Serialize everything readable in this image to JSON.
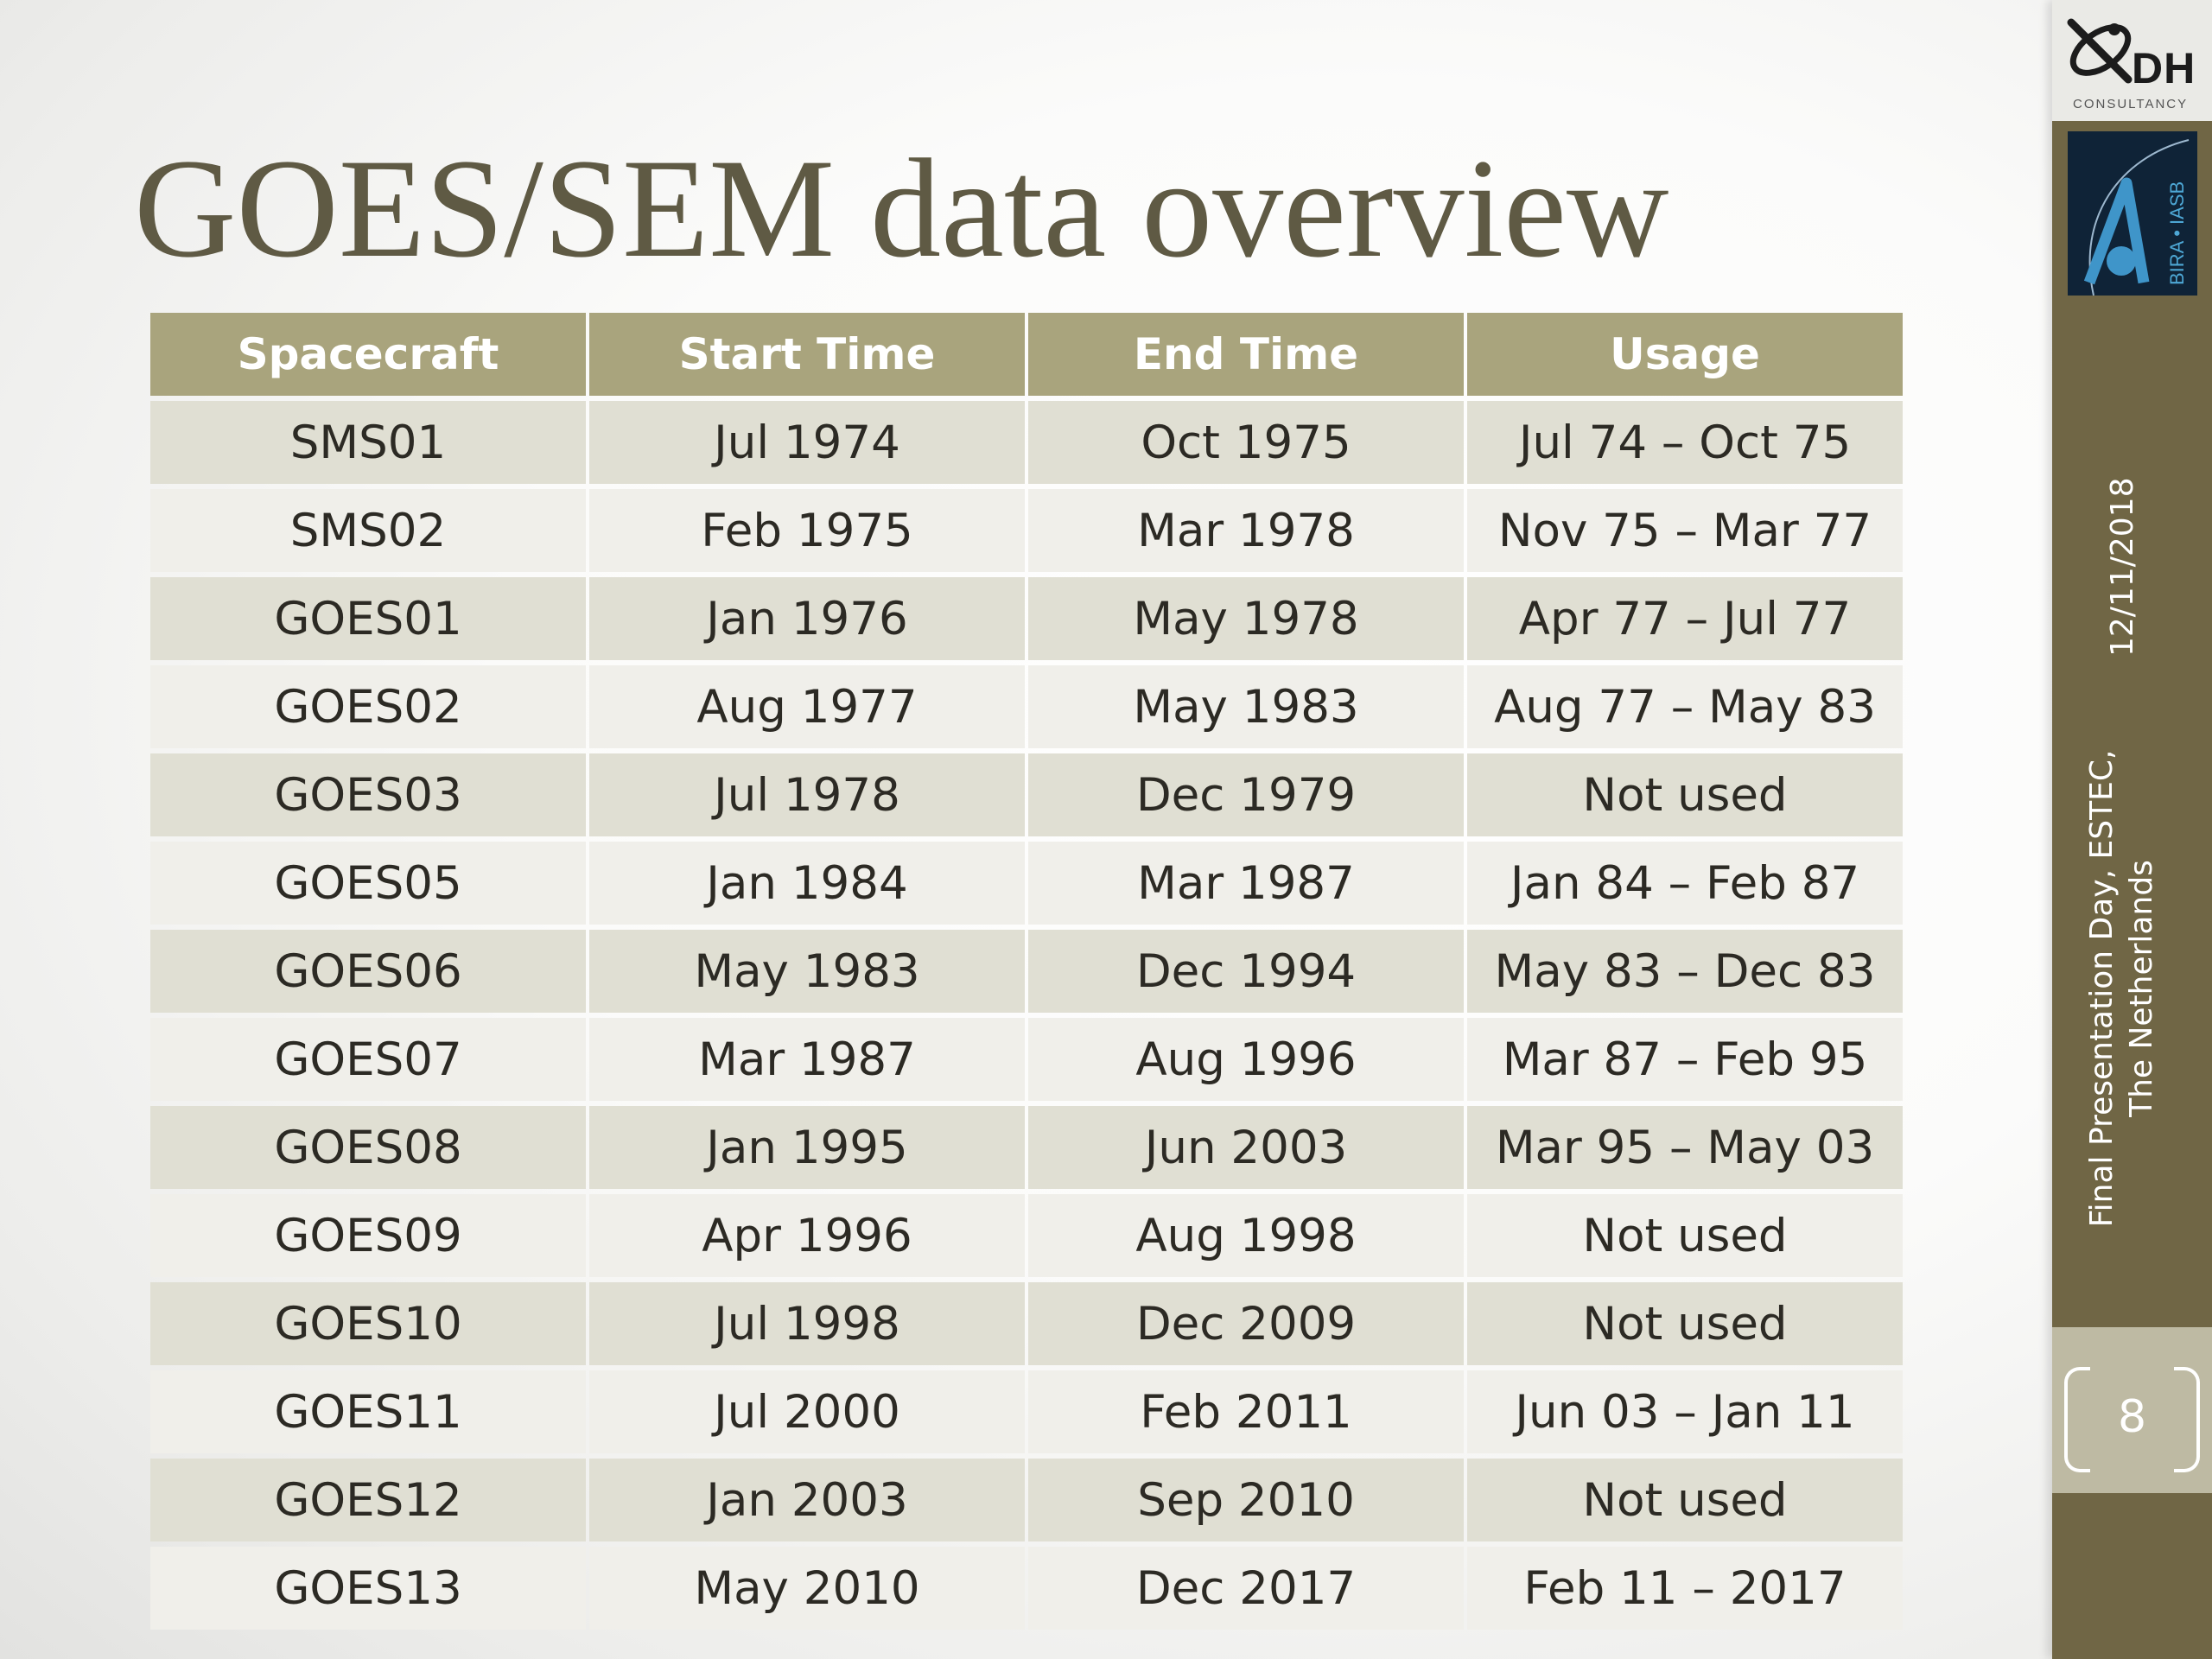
{
  "slide": {
    "title": "GOES/SEM data overview",
    "date": "12/11/2018",
    "event_line1": "Final Presentation Day, ESTEC,",
    "event_line2": "The Netherlands",
    "page_number": "8"
  },
  "logos": {
    "dh_text": "DH",
    "dh_subtext": "CONSULTANCY",
    "bira_text": "BIRA • IASB"
  },
  "table": {
    "headers": [
      "Spacecraft",
      "Start Time",
      "End Time",
      "Usage"
    ],
    "rows": [
      [
        "SMS01",
        "Jul 1974",
        "Oct 1975",
        "Jul 74 – Oct 75"
      ],
      [
        "SMS02",
        "Feb 1975",
        "Mar 1978",
        "Nov 75 – Mar 77"
      ],
      [
        "GOES01",
        "Jan 1976",
        "May 1978",
        "Apr 77 – Jul 77"
      ],
      [
        "GOES02",
        "Aug 1977",
        "May 1983",
        "Aug 77 – May 83"
      ],
      [
        "GOES03",
        "Jul 1978",
        "Dec 1979",
        "Not used"
      ],
      [
        "GOES05",
        "Jan 1984",
        "Mar 1987",
        "Jan 84 – Feb 87"
      ],
      [
        "GOES06",
        "May 1983",
        "Dec 1994",
        "May 83 – Dec 83"
      ],
      [
        "GOES07",
        "Mar 1987",
        "Aug 1996",
        "Mar 87 – Feb 95"
      ],
      [
        "GOES08",
        "Jan 1995",
        "Jun 2003",
        "Mar 95 – May 03"
      ],
      [
        "GOES09",
        "Apr 1996",
        "Aug 1998",
        "Not used"
      ],
      [
        "GOES10",
        "Jul 1998",
        "Dec 2009",
        "Not used"
      ],
      [
        "GOES11",
        "Jul 2000",
        "Feb 2011",
        "Jun 03 – Jan 11"
      ],
      [
        "GOES12",
        "Jan 2003",
        "Sep 2010",
        "Not used"
      ],
      [
        "GOES13",
        "May 2010",
        "Dec 2017",
        "Feb 11 – 2017"
      ]
    ]
  },
  "colors": {
    "header_bg": "#a9a47d",
    "row_odd": "#e0dfd3",
    "row_even": "#f0efea",
    "sidebar": "#706645",
    "title": "#5f5a44"
  }
}
